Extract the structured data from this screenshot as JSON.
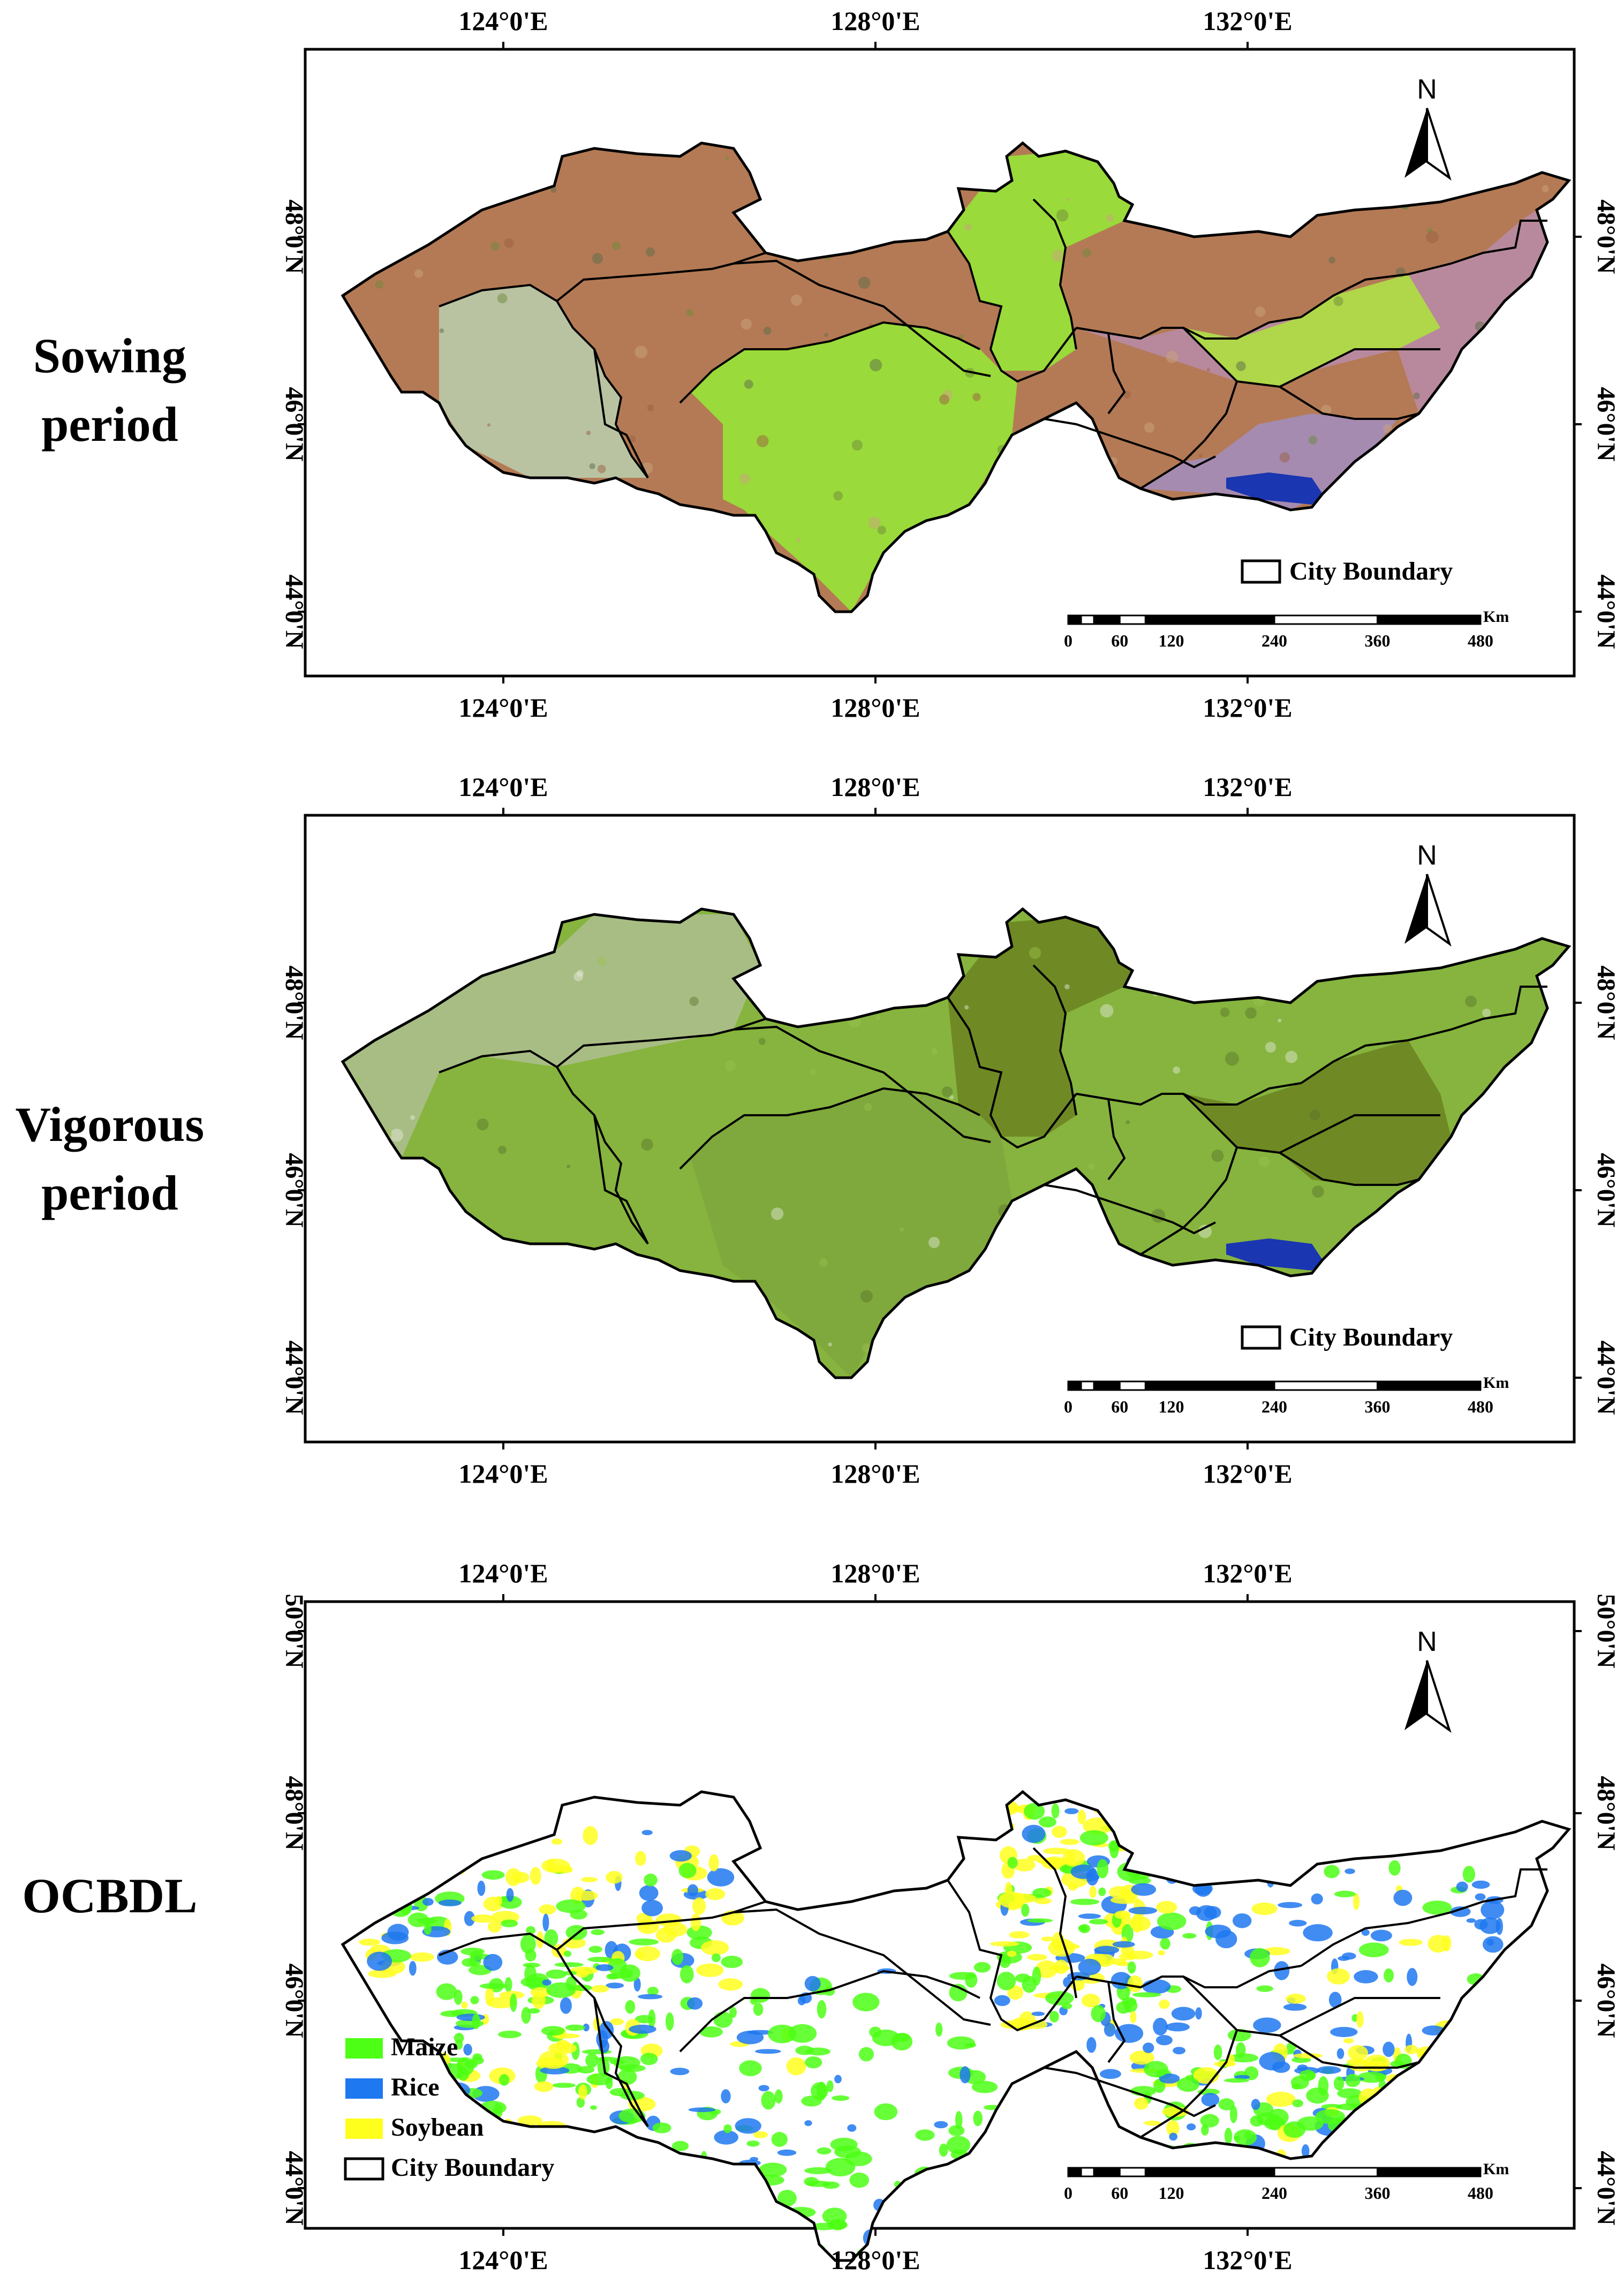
{
  "panels": [
    {
      "label_lines": [
        "Sowing",
        "period"
      ],
      "lon_ticks": [
        "124°0'E",
        "128°0'E",
        "132°0'E"
      ],
      "lat_ticks": [
        "48°0'N",
        "46°0'N",
        "44°0'N"
      ],
      "north": "N",
      "legend": [
        {
          "label": "City Boundary",
          "swatch": "#ffffff"
        }
      ],
      "scale": {
        "labels": [
          "0",
          "60",
          "120",
          "240",
          "360",
          "480"
        ],
        "unit": "Km"
      }
    },
    {
      "label_lines": [
        "Vigorous",
        "period"
      ],
      "lon_ticks": [
        "124°0'E",
        "128°0'E",
        "132°0'E"
      ],
      "lat_ticks": [
        "48°0'N",
        "46°0'N",
        "44°0'N"
      ],
      "north": "N",
      "legend": [
        {
          "label": "City Boundary",
          "swatch": "#ffffff"
        }
      ],
      "scale": {
        "labels": [
          "0",
          "60",
          "120",
          "240",
          "360",
          "480"
        ],
        "unit": "Km"
      }
    },
    {
      "label_lines": [
        "OCBDL"
      ],
      "lon_ticks": [
        "124°0'E",
        "128°0'E",
        "132°0'E"
      ],
      "lat_ticks": [
        "50°0'N",
        "48°0'N",
        "46°0'N",
        "44°0'N"
      ],
      "north": "N",
      "legend": [
        {
          "label": "Maize",
          "swatch": "#4cff14"
        },
        {
          "label": "Rice",
          "swatch": "#1e78f0"
        },
        {
          "label": "Soybean",
          "swatch": "#ffff1e"
        },
        {
          "label": "City Boundary",
          "swatch": "#ffffff"
        }
      ],
      "scale": {
        "labels": [
          "0",
          "60",
          "120",
          "240",
          "360",
          "480"
        ],
        "unit": "Km"
      }
    }
  ],
  "colors": {
    "sowing_soil": "#b47a55",
    "sowing_green": "#9ada3a",
    "sowing_pink": "#b8899c",
    "vigorous_green": "#86b43e",
    "vigorous_dark": "#6f8a24",
    "ocbdl_maize": "#4cff14",
    "ocbdl_rice": "#1e78f0",
    "ocbdl_soy": "#ffff1e",
    "water": "#1a36b0"
  }
}
